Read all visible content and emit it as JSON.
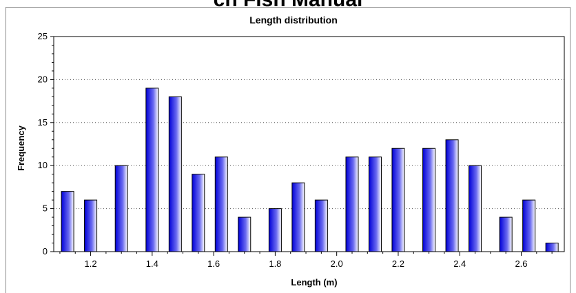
{
  "page_header": "ch Fish Manual",
  "chart_data": {
    "type": "bar",
    "title": "Length distribution",
    "xlabel": "Length (m)",
    "ylabel": "Frequency",
    "x": [
      1.125,
      1.2,
      1.3,
      1.4,
      1.475,
      1.55,
      1.625,
      1.7,
      1.8,
      1.875,
      1.95,
      2.05,
      2.125,
      2.2,
      2.3,
      2.375,
      2.45,
      2.55,
      2.625,
      2.7
    ],
    "values": [
      7,
      6,
      10,
      19,
      18,
      9,
      11,
      4,
      5,
      8,
      6,
      11,
      11,
      12,
      12,
      13,
      10,
      4,
      6,
      1
    ],
    "xlim": [
      1.08,
      2.74
    ],
    "ylim": [
      0,
      25
    ],
    "xticks": [
      1.2,
      1.4,
      1.6,
      1.8,
      2.0,
      2.2,
      2.4,
      2.6
    ],
    "xtick_labels": [
      "1.2",
      "1.4",
      "1.6",
      "1.8",
      "2.0",
      "2.2",
      "2.4",
      "2.6"
    ],
    "yticks": [
      0,
      5,
      10,
      15,
      20,
      25
    ],
    "ytick_labels": [
      "0",
      "5",
      "10",
      "15",
      "20",
      "25"
    ],
    "grid": true,
    "bar_color": "#0000e6"
  }
}
